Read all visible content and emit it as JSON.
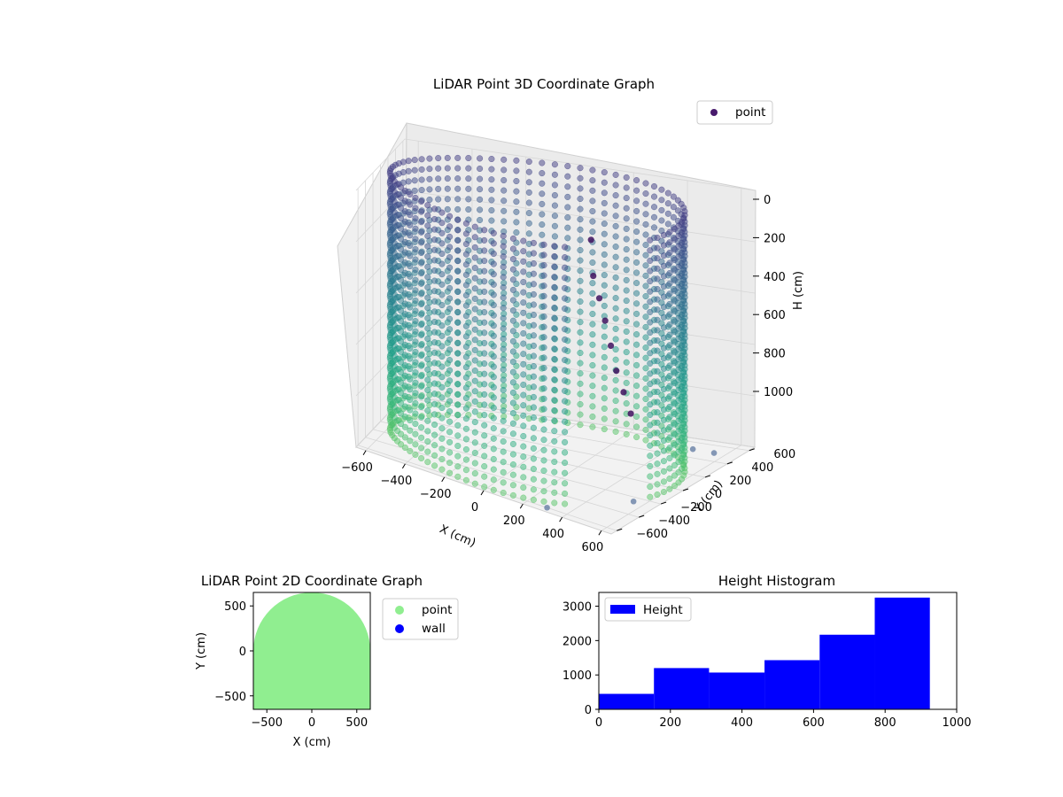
{
  "chart_data": [
    {
      "type": "scatter3d",
      "title": "LiDAR Point 3D Coordinate Graph",
      "xlabel": "X (cm)",
      "ylabel": "Y (cm)",
      "zlabel": "H (cm)",
      "xlim": [
        -650,
        650
      ],
      "ylim": [
        -650,
        650
      ],
      "zlim": [
        0,
        1000
      ],
      "z_inverted": true,
      "xticks": [
        -600,
        -400,
        -200,
        0,
        200,
        400,
        600
      ],
      "yticks": [
        -600,
        -400,
        -200,
        0,
        200,
        400,
        600
      ],
      "zticks": [
        0,
        200,
        400,
        600,
        800,
        1000
      ],
      "legend": [
        "point"
      ],
      "legend_position": "top-right",
      "colormap": "viridis",
      "series": [
        {
          "name": "point",
          "shape": "cylindrical wall",
          "radius": 600,
          "height_range": [
            0,
            1000
          ],
          "angle_range_deg": [
            -15,
            305
          ],
          "stray_points": [
            {
              "x": 300,
              "y": -600,
              "h": 1000
            },
            {
              "x": 550,
              "y": -250,
              "h": 1000
            },
            {
              "x": 600,
              "y": 200,
              "h": 900
            },
            {
              "x": 620,
              "y": 350,
              "h": 950
            }
          ],
          "inner_points": [
            {
              "x": 200,
              "y": 150,
              "h": 150
            },
            {
              "x": 220,
              "y": 120,
              "h": 280
            },
            {
              "x": 260,
              "y": 80,
              "h": 350
            },
            {
              "x": 300,
              "y": 40,
              "h": 420
            },
            {
              "x": 340,
              "y": 0,
              "h": 500
            },
            {
              "x": 380,
              "y": -40,
              "h": 580
            },
            {
              "x": 420,
              "y": -60,
              "h": 650
            },
            {
              "x": 460,
              "y": -80,
              "h": 720
            }
          ]
        }
      ]
    },
    {
      "type": "scatter",
      "title": "LiDAR Point 2D Coordinate Graph",
      "xlabel": "X (cm)",
      "ylabel": "Y (cm)",
      "xlim": [
        -650,
        650
      ],
      "ylim": [
        -650,
        650
      ],
      "xticks": [
        -500,
        0,
        500
      ],
      "yticks": [
        -500,
        0,
        500
      ],
      "legend": [
        "point",
        "wall"
      ],
      "legend_position": "outside-right",
      "colors": {
        "point": "#90ee90",
        "wall": "#0000ff"
      },
      "series": [
        {
          "name": "point",
          "region": "disc",
          "radius": 650,
          "center": [
            0,
            0
          ]
        },
        {
          "name": "wall",
          "values": []
        }
      ]
    },
    {
      "type": "histogram",
      "title": "Height Histogram",
      "xlabel": "",
      "ylabel": "",
      "xlim": [
        0,
        1000
      ],
      "ylim": [
        0,
        3400
      ],
      "xticks": [
        0,
        200,
        400,
        600,
        800,
        1000
      ],
      "yticks": [
        0,
        1000,
        2000,
        3000
      ],
      "legend": [
        "Height"
      ],
      "legend_position": "top-left",
      "color": "#0000ff",
      "bins": [
        {
          "start": 0,
          "end": 154,
          "count": 450
        },
        {
          "start": 154,
          "end": 308,
          "count": 1200
        },
        {
          "start": 308,
          "end": 463,
          "count": 1070
        },
        {
          "start": 463,
          "end": 617,
          "count": 1430
        },
        {
          "start": 617,
          "end": 771,
          "count": 2170
        },
        {
          "start": 771,
          "end": 925,
          "count": 3250
        }
      ]
    }
  ]
}
